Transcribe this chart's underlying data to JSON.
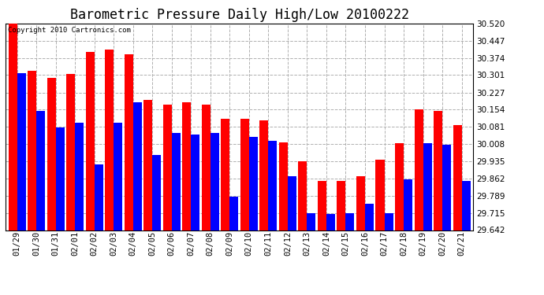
{
  "title": "Barometric Pressure Daily High/Low 20100222",
  "copyright": "Copyright 2010 Cartronics.com",
  "dates": [
    "01/29",
    "01/30",
    "01/31",
    "02/01",
    "02/02",
    "02/03",
    "02/04",
    "02/05",
    "02/06",
    "02/07",
    "02/08",
    "02/09",
    "02/10",
    "02/11",
    "02/12",
    "02/13",
    "02/14",
    "02/15",
    "02/16",
    "02/17",
    "02/18",
    "02/19",
    "02/20",
    "02/21"
  ],
  "highs": [
    30.52,
    30.32,
    30.29,
    30.305,
    30.4,
    30.41,
    30.39,
    30.195,
    30.175,
    30.185,
    30.175,
    30.115,
    30.115,
    30.11,
    30.015,
    29.935,
    29.85,
    29.85,
    29.87,
    29.94,
    30.01,
    30.155,
    30.15,
    30.09
  ],
  "lows": [
    30.31,
    30.15,
    30.08,
    30.1,
    29.92,
    30.1,
    30.185,
    29.96,
    30.055,
    30.05,
    30.055,
    29.785,
    30.04,
    30.02,
    29.87,
    29.715,
    29.71,
    29.715,
    29.755,
    29.715,
    29.858,
    30.01,
    30.005,
    29.85
  ],
  "high_color": "#ff0000",
  "low_color": "#0000ff",
  "background_color": "#ffffff",
  "grid_color": "#b0b0b0",
  "bar_width": 0.45,
  "ylim_min": 29.642,
  "ylim_max": 30.52,
  "yticks": [
    30.52,
    30.447,
    30.374,
    30.301,
    30.227,
    30.154,
    30.081,
    30.008,
    29.935,
    29.862,
    29.789,
    29.715,
    29.642
  ],
  "title_fontsize": 12,
  "copyright_fontsize": 6.5,
  "tick_fontsize": 7.5,
  "figure_bg": "#ffffff"
}
